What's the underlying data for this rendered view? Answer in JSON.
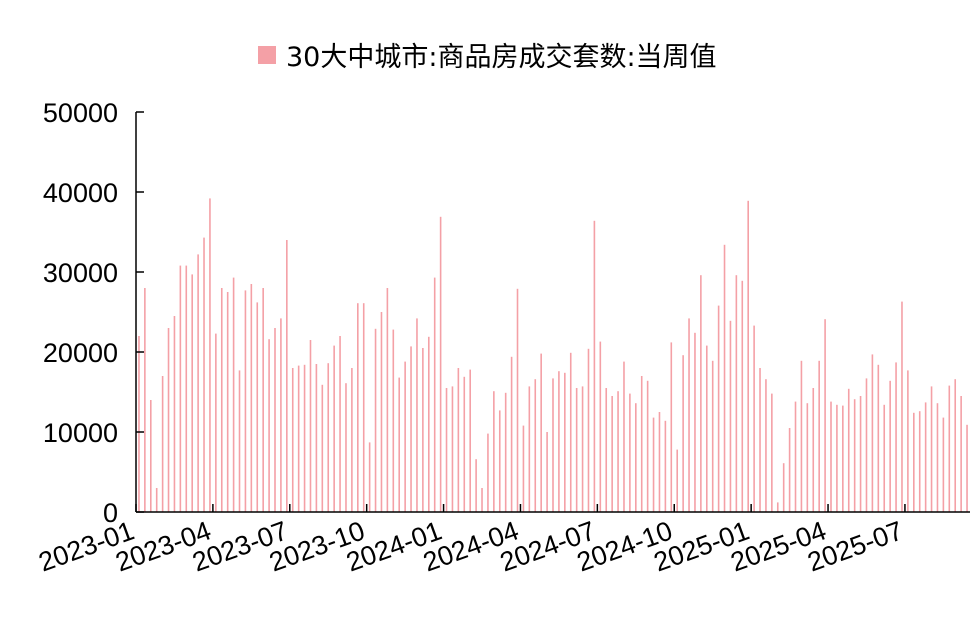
{
  "chart_data": {
    "type": "bar",
    "title": "",
    "legend": "30大中城市:商品房成交套数:当周值",
    "legend_position": "top",
    "xlabel": "",
    "ylabel": "",
    "ylim": [
      0,
      50000
    ],
    "yticks": [
      0,
      10000,
      20000,
      30000,
      40000,
      50000
    ],
    "xticks": [
      "2023-01",
      "2023-04",
      "2023-07",
      "2023-10",
      "2024-01",
      "2024-04",
      "2024-07",
      "2024-10",
      "2025-01",
      "2025-04",
      "2025-07"
    ],
    "xtick_index": [
      0,
      13,
      26,
      39,
      52,
      65,
      78,
      91,
      104,
      117,
      130
    ],
    "grid": false,
    "color": "#f4a0a6",
    "series": [
      {
        "values": [
          22000,
          28000,
          14000,
          3000,
          17000,
          23000,
          24500,
          30800,
          30800,
          29700,
          32200,
          34300,
          39200,
          22300,
          28000,
          27500,
          29300,
          17700,
          27700,
          28500,
          26200,
          28000,
          21600,
          23000,
          24200,
          34000,
          18000,
          18300,
          18400,
          21500,
          18500,
          15900,
          18600,
          20800,
          22000,
          16100,
          18000,
          26100,
          26100,
          8700,
          22900,
          25000,
          28000,
          22800,
          16800,
          18800,
          20700,
          24200,
          20500,
          21900,
          29300,
          36900,
          15500,
          15700,
          18000,
          16900,
          17800,
          6600,
          3000,
          9800,
          15100,
          12700,
          14900,
          19400,
          27900,
          10800,
          15700,
          16600,
          19800,
          10000,
          16700,
          17600,
          17400,
          19900,
          15500,
          15700,
          20400,
          36400,
          21300,
          15500,
          14500,
          15100,
          18800,
          14800,
          13600,
          17000,
          16400,
          11800,
          12500,
          11400,
          21200,
          7800,
          19600,
          24200,
          22400,
          29600,
          20800,
          18900,
          25800,
          33400,
          23900,
          29600,
          28900,
          38900,
          23300,
          18000,
          16600,
          14800,
          1200,
          6100,
          10500,
          13800,
          18900,
          13600,
          15500,
          18900,
          24100,
          13800,
          13400,
          13300,
          15400,
          14100,
          14500,
          16700,
          19700,
          18400,
          13400,
          16400,
          18700,
          26300,
          17700,
          12400,
          12600,
          13700,
          15700,
          13600,
          11800,
          15800,
          16600,
          14500,
          10900
        ]
      }
    ]
  }
}
